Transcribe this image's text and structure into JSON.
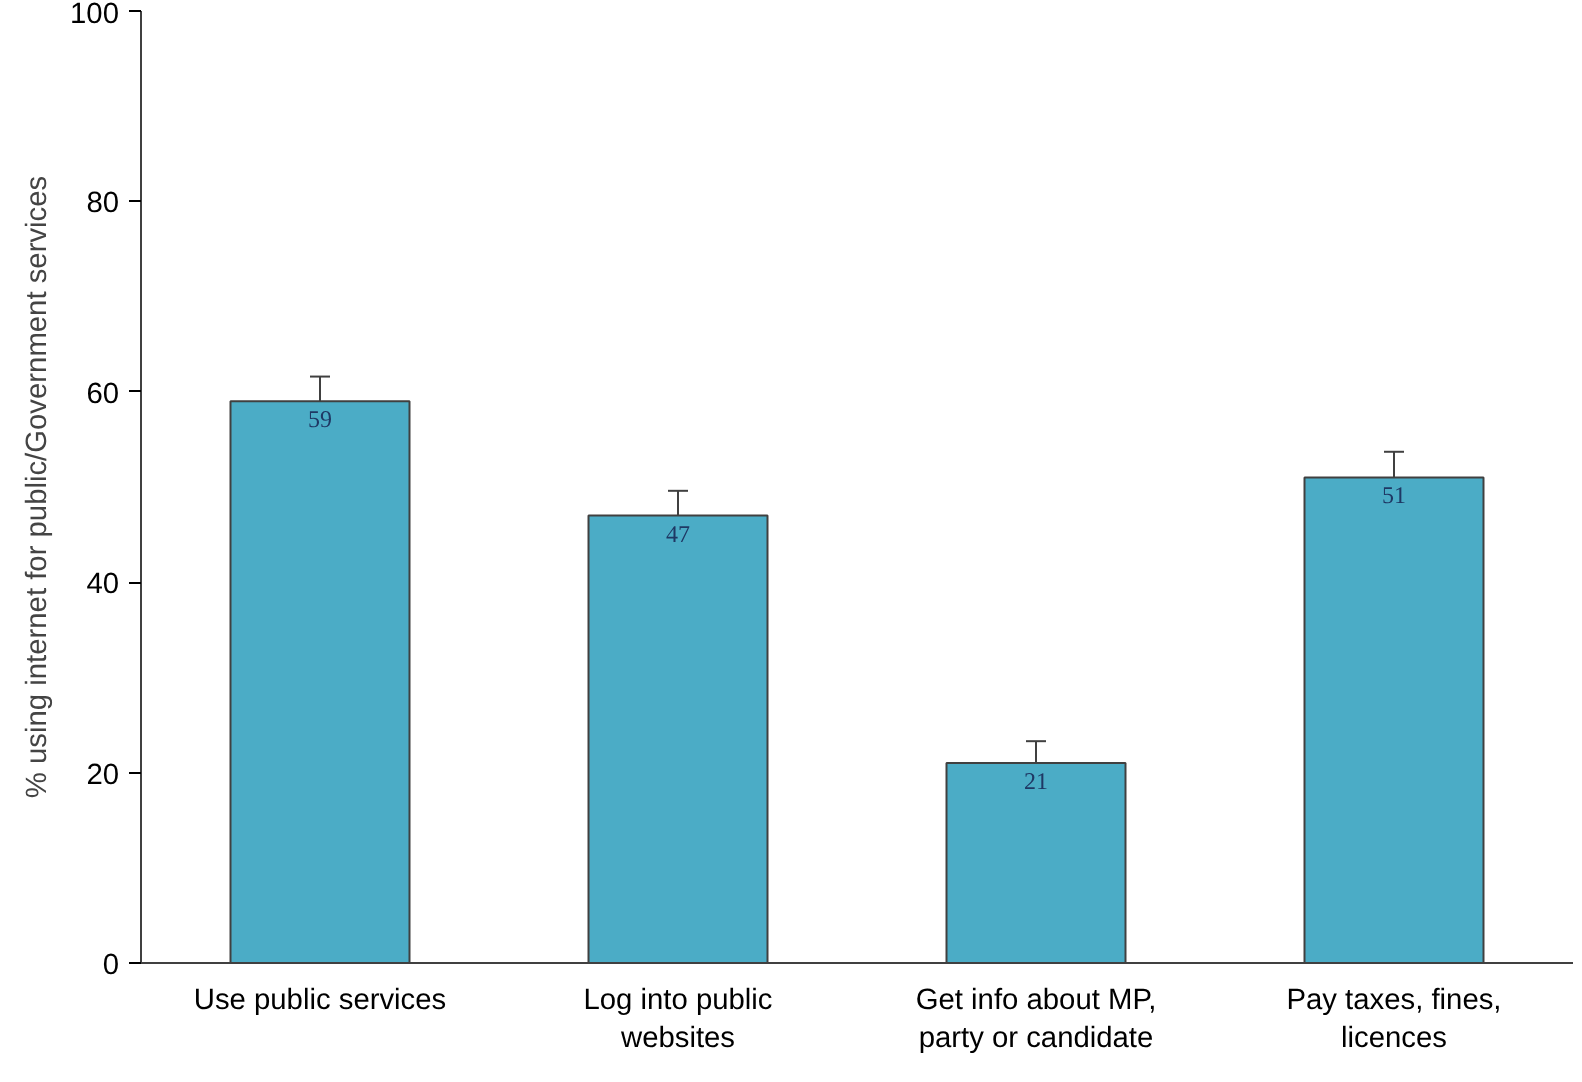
{
  "chart_data": {
    "type": "bar",
    "ylabel": "% using internet for public/Government services",
    "categories": [
      "Use public services",
      "Log into public websites",
      "Get info about MP, party or candidate",
      "Pay taxes, fines, licences"
    ],
    "values": [
      59,
      47,
      21,
      51
    ],
    "errors": [
      2.6,
      2.6,
      2.3,
      2.7
    ],
    "color": "#4bacc6",
    "data_labels": true,
    "ylim": [
      0,
      100
    ],
    "yticks": [
      0,
      20,
      40,
      60,
      80,
      100
    ],
    "grid": false
  }
}
